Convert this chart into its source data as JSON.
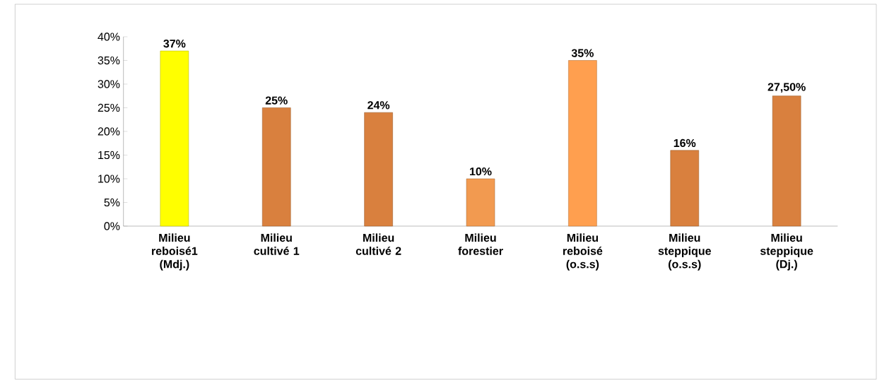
{
  "chart_data": {
    "type": "bar",
    "categories": [
      "Milieu reboisé1 (Mdj.)",
      "Milieu cultivé 1",
      "Milieu cultivé 2",
      "Milieu forestier",
      "Milieu reboisé (o.s.s)",
      "Milieu steppique (o.s.s)",
      "Milieu steppique (Dj.)"
    ],
    "values": [
      37,
      25,
      24,
      10,
      35,
      16,
      27.5
    ],
    "colors": [
      "#ffff00",
      "#d9803e",
      "#d9803e",
      "#f29a50",
      "#ff9f4f",
      "#d9803e",
      "#d9803e"
    ],
    "value_labels": [
      "37%",
      "25%",
      "24%",
      "10%",
      "35%",
      "16%",
      "27,50%"
    ],
    "ylim": [
      0,
      40
    ],
    "yticks": [
      {
        "value": 0,
        "label": "0%"
      },
      {
        "value": 5,
        "label": "5%"
      },
      {
        "value": 10,
        "label": "10%"
      },
      {
        "value": 15,
        "label": "15%"
      },
      {
        "value": 20,
        "label": "20%"
      },
      {
        "value": 25,
        "label": "25%"
      },
      {
        "value": 30,
        "label": "30%"
      },
      {
        "value": 35,
        "label": "35%"
      },
      {
        "value": 40,
        "label": "40%"
      }
    ],
    "grid": false
  }
}
